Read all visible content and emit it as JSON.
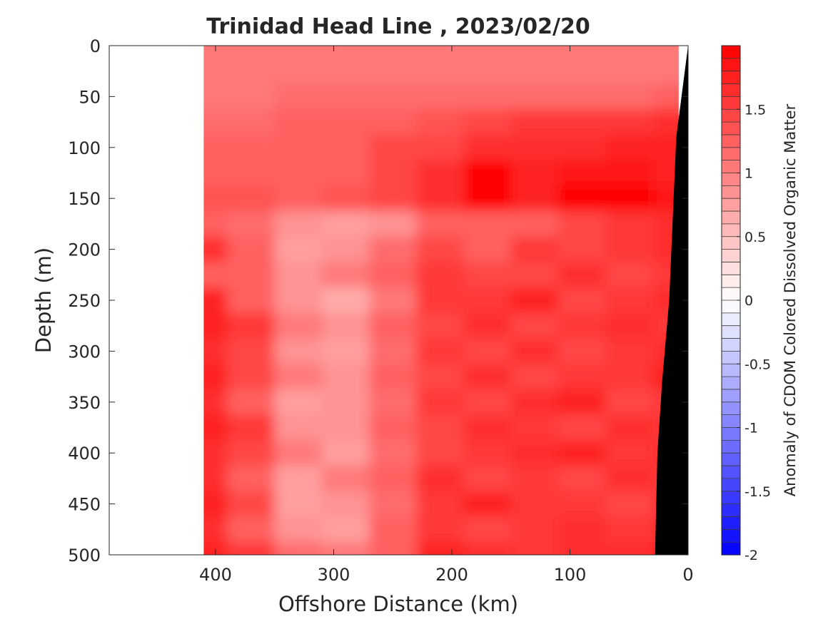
{
  "chart_data": {
    "type": "heatmap",
    "title": "Trinidad Head Line , 2023/02/20",
    "xlabel": "Offshore Distance (km)",
    "ylabel": "Depth (m)",
    "xlim": [
      490,
      0
    ],
    "ylim": [
      0,
      500
    ],
    "x_reversed": true,
    "y_reversed": true,
    "x_ticks": [
      400,
      300,
      200,
      100,
      0
    ],
    "x_tick_labels": [
      "400",
      "300",
      "200",
      "100",
      "0"
    ],
    "y_ticks": [
      0,
      50,
      100,
      150,
      200,
      250,
      300,
      350,
      400,
      450,
      500
    ],
    "y_tick_labels": [
      "0",
      "50",
      "100",
      "150",
      "200",
      "250",
      "300",
      "350",
      "400",
      "450",
      "500"
    ],
    "data_extent": {
      "x_max_km": 410,
      "x_min_km": 8
    },
    "bathymetry": {
      "color": "#000000",
      "points": [
        [
          0,
          0
        ],
        [
          10,
          90
        ],
        [
          16,
          250
        ],
        [
          22,
          330
        ],
        [
          26,
          400
        ],
        [
          28,
          500
        ]
      ]
    },
    "colorbar": {
      "label": "Anomaly of CDOM Colored Dissolved Organic Matter",
      "range": [
        -2,
        2
      ],
      "levels": 40,
      "ticks": [
        1.5,
        1,
        0.5,
        0,
        -0.5,
        -1,
        -1.5,
        -2
      ],
      "tick_labels": [
        "1.5",
        "1",
        "0.5",
        "0",
        "-0.5",
        "-1",
        "-1.5",
        "-2"
      ],
      "colormap": "blue-white-red",
      "color_min": "#0000ff",
      "color_mid": "#ffffff",
      "color_max": "#ff0000"
    },
    "depths": [
      0,
      25,
      50,
      75,
      100,
      125,
      150,
      175,
      200,
      225,
      250,
      275,
      300,
      325,
      350,
      375,
      400,
      425,
      450,
      475,
      500
    ],
    "distances": [
      410,
      370,
      330,
      290,
      250,
      210,
      170,
      130,
      90,
      50,
      10
    ],
    "values": [
      [
        1.0,
        1.05,
        1.05,
        1.05,
        1.05,
        1.05,
        1.05,
        1.05,
        1.05,
        1.05,
        1.05
      ],
      [
        1.0,
        1.0,
        1.05,
        1.05,
        1.05,
        1.05,
        1.05,
        1.05,
        1.05,
        1.05,
        1.05
      ],
      [
        1.05,
        1.05,
        1.1,
        1.15,
        1.15,
        1.1,
        1.1,
        1.1,
        1.1,
        1.1,
        1.25
      ],
      [
        1.15,
        1.15,
        1.2,
        1.25,
        1.3,
        1.35,
        1.45,
        1.5,
        1.55,
        1.55,
        1.6
      ],
      [
        1.25,
        1.25,
        1.2,
        1.3,
        1.4,
        1.45,
        1.6,
        1.6,
        1.65,
        1.7,
        1.7
      ],
      [
        1.3,
        1.3,
        1.2,
        1.3,
        1.45,
        1.6,
        1.9,
        1.7,
        1.85,
        1.85,
        1.8
      ],
      [
        1.35,
        1.35,
        1.25,
        1.35,
        1.45,
        1.65,
        1.95,
        1.8,
        1.95,
        1.95,
        1.85
      ],
      [
        1.25,
        1.1,
        0.9,
        0.8,
        0.9,
        1.2,
        1.3,
        1.3,
        1.45,
        1.55,
        1.6
      ],
      [
        1.6,
        1.2,
        0.8,
        0.9,
        1.1,
        1.4,
        1.3,
        1.5,
        1.4,
        1.55,
        1.6
      ],
      [
        1.3,
        1.2,
        0.9,
        1.0,
        1.3,
        1.5,
        1.4,
        1.4,
        1.6,
        1.45,
        1.55
      ],
      [
        1.7,
        1.3,
        0.9,
        0.6,
        1.0,
        1.5,
        1.5,
        1.7,
        1.45,
        1.55,
        1.6
      ],
      [
        1.7,
        1.5,
        1.0,
        0.85,
        1.2,
        1.4,
        1.6,
        1.45,
        1.5,
        1.6,
        1.5
      ],
      [
        1.6,
        1.4,
        0.9,
        0.8,
        1.1,
        1.5,
        1.45,
        1.65,
        1.45,
        1.5,
        1.6
      ],
      [
        1.7,
        1.4,
        1.0,
        0.85,
        1.2,
        1.45,
        1.6,
        1.45,
        1.55,
        1.5,
        1.7
      ],
      [
        1.6,
        1.3,
        0.8,
        0.9,
        1.1,
        1.5,
        1.4,
        1.6,
        1.7,
        1.45,
        1.55
      ],
      [
        1.7,
        1.5,
        0.9,
        0.9,
        1.3,
        1.45,
        1.6,
        1.5,
        1.45,
        1.6,
        1.55
      ],
      [
        1.65,
        1.4,
        1.0,
        0.8,
        1.1,
        1.4,
        1.5,
        1.6,
        1.7,
        1.5,
        1.6
      ],
      [
        1.6,
        1.3,
        0.7,
        1.0,
        1.2,
        1.6,
        1.45,
        1.5,
        1.45,
        1.6,
        1.55
      ],
      [
        1.7,
        1.4,
        0.8,
        0.9,
        1.1,
        1.5,
        1.7,
        1.55,
        1.5,
        1.45,
        1.6
      ],
      [
        1.6,
        1.3,
        0.9,
        0.8,
        1.3,
        1.5,
        1.45,
        1.5,
        1.65,
        1.55,
        1.6
      ],
      [
        1.8,
        1.5,
        1.1,
        1.0,
        1.3,
        1.7,
        1.6,
        1.55,
        1.6,
        1.65,
        1.7
      ]
    ]
  }
}
